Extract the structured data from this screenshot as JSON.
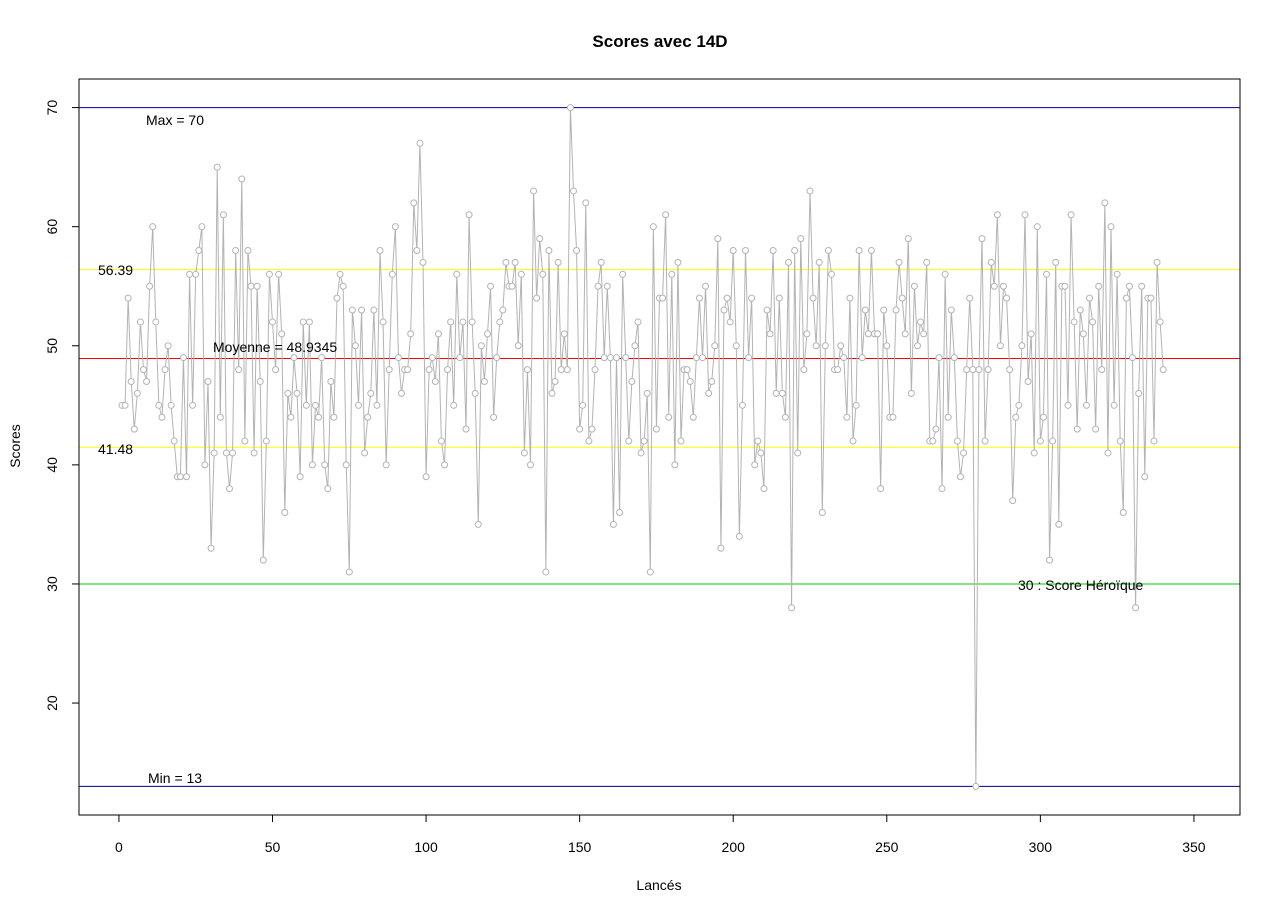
{
  "chart_data": {
    "type": "line",
    "title": "Scores avec 14D",
    "xlabel": "Lancés",
    "ylabel": "Scores",
    "xlim": [
      -13,
      365
    ],
    "ylim": [
      10.6,
      72.4
    ],
    "x_ticks": [
      0,
      50,
      100,
      150,
      200,
      250,
      300,
      350
    ],
    "y_ticks": [
      20,
      30,
      40,
      50,
      60,
      70
    ],
    "grid": false,
    "series": [
      {
        "color": "#b3b3b3",
        "x_start": 1,
        "values": [
          45,
          45,
          54,
          47,
          43,
          46,
          52,
          48,
          47,
          55,
          60,
          52,
          45,
          44,
          48,
          50,
          45,
          42,
          39,
          39,
          49,
          39,
          56,
          45,
          56,
          58,
          60,
          40,
          47,
          33,
          41,
          65,
          44,
          61,
          41,
          38,
          41,
          58,
          48,
          64,
          42,
          58,
          55,
          41,
          55,
          47,
          32,
          42,
          56,
          52,
          48,
          56,
          51,
          36,
          46,
          44,
          49,
          46,
          39,
          52,
          45,
          52,
          40,
          45,
          44,
          49,
          40,
          38,
          47,
          44,
          54,
          56,
          55,
          40,
          31,
          53,
          50,
          45,
          53,
          41,
          44,
          46,
          53,
          45,
          58,
          52,
          40,
          48,
          56,
          60,
          49,
          46,
          48,
          48,
          51,
          62,
          58,
          67,
          57,
          39,
          48,
          49,
          47,
          51,
          42,
          40,
          48,
          52,
          45,
          56,
          49,
          52,
          43,
          61,
          52,
          46,
          35,
          50,
          47,
          51,
          55,
          44,
          49,
          52,
          53,
          57,
          55,
          55,
          57,
          50,
          56,
          41,
          48,
          40,
          63,
          54,
          59,
          56,
          31,
          58,
          46,
          47,
          57,
          48,
          51,
          48,
          70,
          63,
          58,
          43,
          45,
          62,
          42,
          43,
          48,
          55,
          57,
          49,
          55,
          49,
          35,
          49,
          36,
          56,
          49,
          42,
          47,
          50,
          52,
          41,
          42,
          46,
          31,
          60,
          43,
          54,
          54,
          61,
          44,
          56,
          40,
          57,
          42,
          48,
          48,
          47,
          44,
          49,
          54,
          49,
          55,
          46,
          47,
          50,
          59,
          33,
          53,
          54,
          52,
          58,
          50,
          34,
          45,
          58,
          49,
          54,
          40,
          42,
          41,
          38,
          53,
          51,
          58,
          46,
          54,
          46,
          44,
          57,
          28,
          58,
          41,
          59,
          48,
          51,
          63,
          54,
          50,
          57,
          36,
          50,
          58,
          56,
          48,
          48,
          50,
          49,
          44,
          54,
          42,
          45,
          58,
          49,
          53,
          51,
          58,
          51,
          51,
          38,
          53,
          50,
          44,
          44,
          53,
          57,
          54,
          51,
          59,
          46,
          55,
          50,
          52,
          51,
          57,
          42,
          42,
          43,
          49,
          38,
          56,
          44,
          53,
          49,
          42,
          39,
          41,
          48,
          54,
          48,
          13,
          48,
          59,
          42,
          48,
          57,
          55,
          61,
          50,
          55,
          54,
          48,
          37,
          44,
          45,
          50,
          61,
          47,
          51,
          41,
          60,
          42,
          44,
          56,
          32,
          42,
          57,
          35,
          55,
          55,
          45,
          61,
          52,
          43,
          53,
          51,
          45,
          54,
          52,
          43,
          55,
          48,
          62,
          41,
          60,
          45,
          56,
          42,
          36,
          54,
          55,
          49,
          28,
          46,
          55,
          39,
          54,
          54,
          42,
          57,
          52,
          48
        ]
      }
    ],
    "hlines": [
      {
        "y": 70,
        "color": "#00008b"
      },
      {
        "y": 13,
        "color": "#00008b"
      },
      {
        "y": 56.39,
        "color": "#ffff00"
      },
      {
        "y": 41.48,
        "color": "#ffff00"
      },
      {
        "y": 48.9345,
        "color": "#ff0000"
      },
      {
        "y": 30,
        "color": "#00cc00"
      }
    ],
    "annotations": {
      "max": "Max =  70",
      "min": "Min =  13",
      "upper": "56.39",
      "lower": "41.48",
      "mean": "Moyenne =  48.9345",
      "heroic": "30 : Score Héroïque"
    }
  }
}
